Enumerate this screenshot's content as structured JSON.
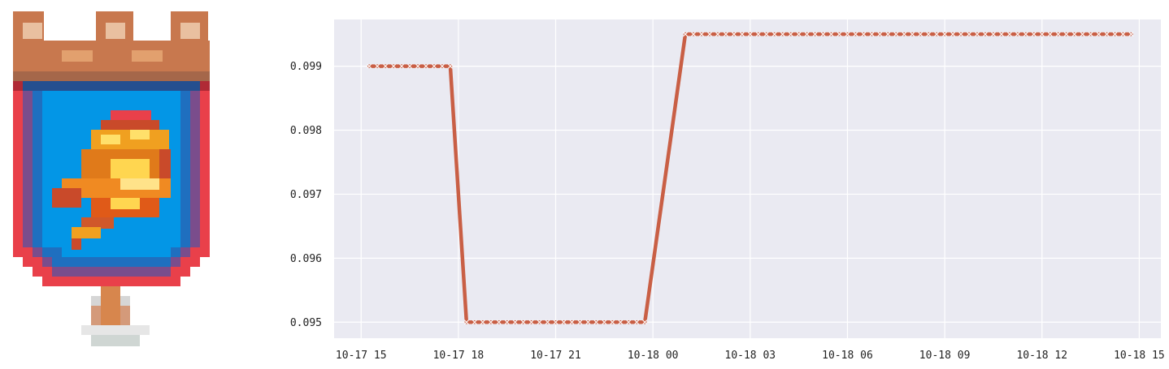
{
  "badge": {
    "icon": "castle-shield-rocket-icon"
  },
  "colors": {
    "line": "#c95f45",
    "marker": "#ffffff",
    "plot_bg": "#eaeaf2",
    "grid": "#ffffff"
  },
  "chart_data": {
    "type": "line",
    "title": "",
    "xlabel": "",
    "ylabel": "",
    "x_type": "datetime",
    "x_ticks": [
      "10-17 15",
      "10-17 18",
      "10-17 21",
      "10-18 00",
      "10-18 03",
      "10-18 06",
      "10-18 09",
      "10-18 12",
      "10-18 15"
    ],
    "y_ticks": [
      "0.095",
      "0.096",
      "0.097",
      "0.098",
      "0.099"
    ],
    "xlim": [
      "2023-10-17 14:10",
      "2023-10-18 15:40"
    ],
    "ylim": [
      0.09475,
      0.09973
    ],
    "grid": true,
    "series": [
      {
        "points": [
          [
            "2023-10-17 15:15",
            0.099
          ],
          [
            "2023-10-17 17:45",
            0.099
          ],
          [
            "2023-10-17 18:15",
            0.095
          ],
          [
            "2023-10-17 23:45",
            0.095
          ],
          [
            "2023-10-18 01:00",
            0.0995
          ],
          [
            "2023-10-18 14:45",
            0.0995
          ]
        ]
      }
    ]
  }
}
